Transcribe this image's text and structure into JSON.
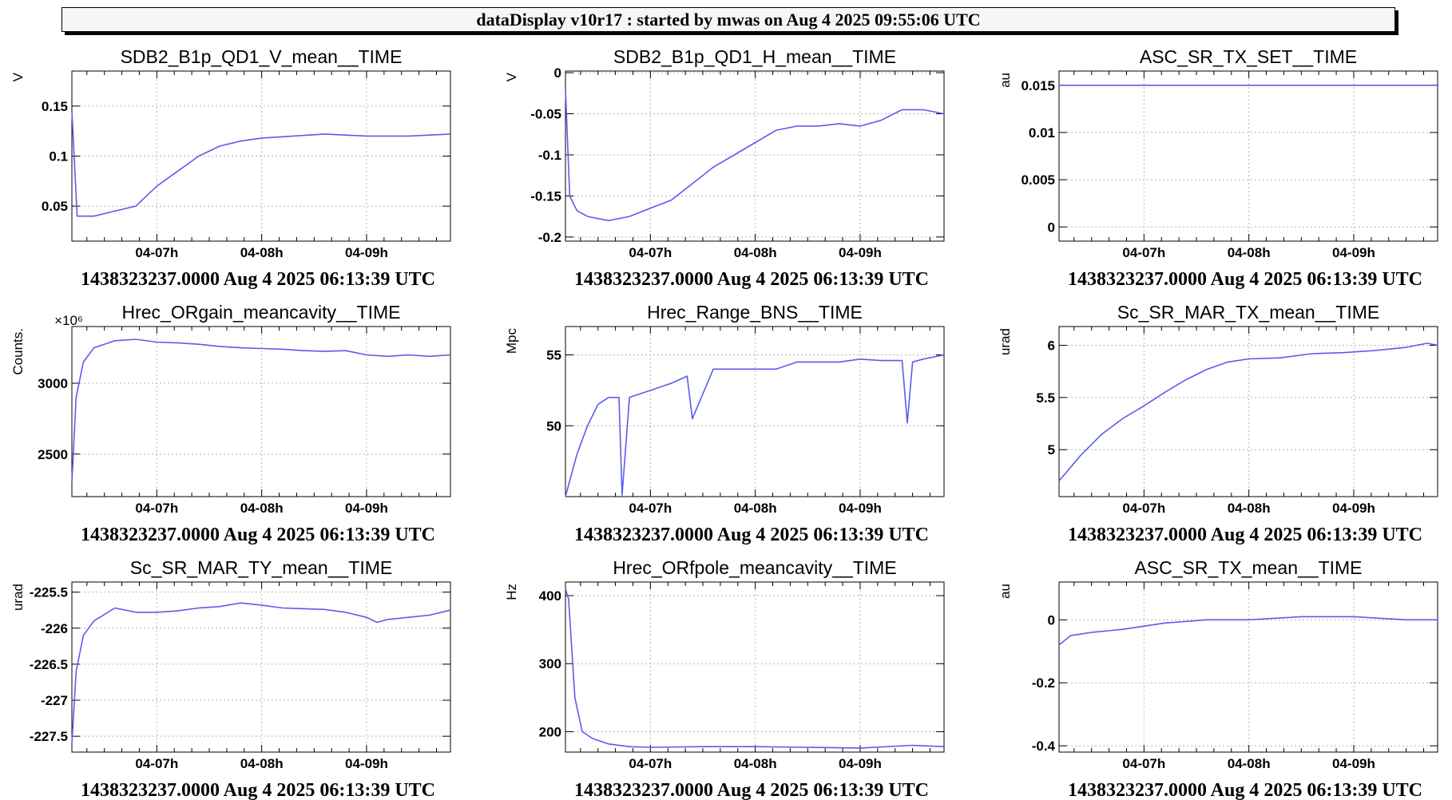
{
  "header": {
    "title": "dataDisplay v10r17 : started by mwas on Aug  4 2025 09:55:06 UTC"
  },
  "footer_text": "1438323237.0000 Aug 4 2025 06:13:39 UTC",
  "x_ticks": [
    "04-07h",
    "04-08h",
    "04-09h"
  ],
  "line_color": "#5b5bf0",
  "chart_data": [
    {
      "type": "line",
      "title": "SDB2_B1p_QD1_V_mean__TIME",
      "ylabel": "V",
      "ylim": [
        0.015,
        0.185
      ],
      "yticks": [
        0.05,
        0.1,
        0.15
      ],
      "yticklabels": [
        "0.05",
        "0.1",
        "0.15"
      ],
      "x": [
        6.19,
        6.24,
        6.4,
        6.6,
        6.8,
        7.0,
        7.2,
        7.4,
        7.6,
        7.8,
        8.0,
        8.3,
        8.6,
        9.0,
        9.4,
        9.8
      ],
      "y": [
        0.145,
        0.04,
        0.04,
        0.045,
        0.05,
        0.07,
        0.085,
        0.1,
        0.11,
        0.115,
        0.118,
        0.12,
        0.122,
        0.12,
        0.12,
        0.122
      ]
    },
    {
      "type": "line",
      "title": "SDB2_B1p_QD1_H_mean__TIME",
      "ylabel": "V",
      "ylim": [
        -0.205,
        0.002
      ],
      "yticks": [
        -0.2,
        -0.15,
        -0.1,
        -0.05,
        0
      ],
      "yticklabels": [
        "-0.2",
        "-0.15",
        "-0.1",
        "-0.05",
        "0"
      ],
      "x": [
        6.19,
        6.23,
        6.3,
        6.4,
        6.6,
        6.8,
        7.0,
        7.2,
        7.4,
        7.6,
        7.8,
        8.0,
        8.2,
        8.4,
        8.6,
        8.8,
        9.0,
        9.2,
        9.4,
        9.6,
        9.8
      ],
      "y": [
        -0.02,
        -0.15,
        -0.168,
        -0.175,
        -0.18,
        -0.175,
        -0.165,
        -0.155,
        -0.135,
        -0.115,
        -0.1,
        -0.085,
        -0.07,
        -0.065,
        -0.065,
        -0.062,
        -0.065,
        -0.058,
        -0.045,
        -0.045,
        -0.05
      ]
    },
    {
      "type": "line",
      "title": "ASC_SR_TX_SET__TIME",
      "ylabel": "au",
      "ylim": [
        -0.0015,
        0.0165
      ],
      "yticks": [
        0,
        0.005,
        0.01,
        0.015
      ],
      "yticklabels": [
        "0",
        "0.005",
        "0.01",
        "0.015"
      ],
      "x": [
        6.19,
        9.8
      ],
      "y": [
        0.015,
        0.015
      ]
    },
    {
      "type": "line",
      "title": "Hrec_ORgain_meancavity__TIME",
      "ylabel": "Counts.",
      "yexponent": "×10⁶",
      "ylim": [
        2200,
        3400
      ],
      "yticks": [
        2500,
        3000
      ],
      "yticklabels": [
        "2500",
        "3000"
      ],
      "x": [
        6.19,
        6.23,
        6.3,
        6.4,
        6.6,
        6.8,
        7.0,
        7.2,
        7.4,
        7.6,
        7.8,
        8.0,
        8.2,
        8.4,
        8.6,
        8.8,
        9.0,
        9.2,
        9.4,
        9.6,
        9.8
      ],
      "y": [
        2300,
        2900,
        3150,
        3250,
        3300,
        3310,
        3290,
        3285,
        3275,
        3260,
        3250,
        3245,
        3240,
        3230,
        3225,
        3230,
        3200,
        3190,
        3200,
        3190,
        3200
      ]
    },
    {
      "type": "line",
      "title": "Hrec_Range_BNS__TIME",
      "ylabel": "Mpc",
      "ylim": [
        45,
        57
      ],
      "yticks": [
        50,
        55
      ],
      "yticklabels": [
        "50",
        "55"
      ],
      "x": [
        6.19,
        6.3,
        6.4,
        6.5,
        6.6,
        6.7,
        6.73,
        6.8,
        7.0,
        7.2,
        7.35,
        7.4,
        7.6,
        7.8,
        8.0,
        8.2,
        8.4,
        8.6,
        8.8,
        9.0,
        9.2,
        9.4,
        9.45,
        9.5,
        9.6,
        9.8
      ],
      "y": [
        45,
        48,
        50,
        51.5,
        52,
        52,
        45.1,
        52,
        52.5,
        53,
        53.5,
        50.5,
        54,
        54,
        54,
        54,
        54.5,
        54.5,
        54.5,
        54.7,
        54.6,
        54.6,
        50.2,
        54.5,
        54.7,
        55
      ]
    },
    {
      "type": "line",
      "title": "Sc_SR_MAR_TX_mean__TIME",
      "ylabel": "urad",
      "ylim": [
        4.55,
        6.18
      ],
      "yticks": [
        5,
        5.5,
        6
      ],
      "yticklabels": [
        "5",
        "5.5",
        "6"
      ],
      "x": [
        6.19,
        6.4,
        6.6,
        6.8,
        7.0,
        7.2,
        7.4,
        7.6,
        7.8,
        8.0,
        8.3,
        8.6,
        8.9,
        9.2,
        9.5,
        9.7,
        9.8
      ],
      "y": [
        4.7,
        4.95,
        5.15,
        5.3,
        5.42,
        5.55,
        5.67,
        5.77,
        5.84,
        5.87,
        5.88,
        5.92,
        5.93,
        5.95,
        5.98,
        6.02,
        6.0
      ]
    },
    {
      "type": "line",
      "title": "Sc_SR_MAR_TY_mean__TIME",
      "ylabel": "urad",
      "ylim": [
        -227.72,
        -225.36
      ],
      "yticks": [
        -227.5,
        -227,
        -226.5,
        -226,
        -225.5
      ],
      "yticklabels": [
        "-227.5",
        "-227",
        "-226.5",
        "-226",
        "-225.5"
      ],
      "x": [
        6.19,
        6.23,
        6.3,
        6.4,
        6.6,
        6.8,
        7.0,
        7.2,
        7.4,
        7.6,
        7.8,
        8.0,
        8.2,
        8.4,
        8.6,
        8.8,
        9.0,
        9.1,
        9.2,
        9.4,
        9.6,
        9.8
      ],
      "y": [
        -227.6,
        -226.6,
        -226.1,
        -225.9,
        -225.72,
        -225.78,
        -225.78,
        -225.76,
        -225.72,
        -225.7,
        -225.65,
        -225.68,
        -225.72,
        -225.73,
        -225.74,
        -225.78,
        -225.85,
        -225.92,
        -225.88,
        -225.85,
        -225.82,
        -225.75
      ]
    },
    {
      "type": "line",
      "title": "Hrec_ORfpole_meancavity__TIME",
      "ylabel": "Hz",
      "ylim": [
        170,
        420
      ],
      "yticks": [
        200,
        300,
        400
      ],
      "yticklabels": [
        "200",
        "300",
        "400"
      ],
      "x": [
        6.19,
        6.22,
        6.28,
        6.35,
        6.45,
        6.6,
        6.8,
        7.0,
        7.5,
        8.0,
        8.5,
        9.0,
        9.5,
        9.8
      ],
      "y": [
        410,
        395,
        250,
        200,
        190,
        182,
        178,
        177,
        178,
        178,
        177,
        176,
        180,
        178
      ]
    },
    {
      "type": "line",
      "title": "ASC_SR_TX_mean__TIME",
      "ylabel": "au",
      "ylim": [
        -0.42,
        0.12
      ],
      "yticks": [
        -0.4,
        -0.2,
        0
      ],
      "yticklabels": [
        "-0.4",
        "-0.2",
        "0"
      ],
      "x": [
        6.19,
        6.3,
        6.5,
        6.8,
        7.2,
        7.6,
        8.0,
        8.5,
        9.0,
        9.5,
        9.8
      ],
      "y": [
        -0.08,
        -0.05,
        -0.04,
        -0.03,
        -0.01,
        0.0,
        0.0,
        0.01,
        0.01,
        0.0,
        0.0
      ]
    }
  ]
}
